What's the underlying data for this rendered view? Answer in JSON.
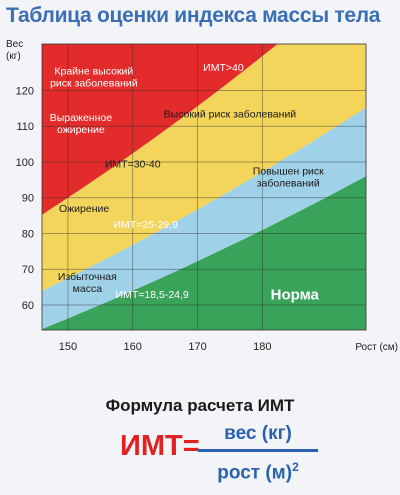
{
  "title": "Таблица оценки индекса массы тела",
  "chart_data": {
    "type": "area",
    "xlabel": "Рост (см)",
    "ylabel": "Вес\n(кг)",
    "xlim": [
      146,
      196
    ],
    "ylim": [
      53,
      133
    ],
    "xticks": [
      150,
      160,
      170,
      180
    ],
    "yticks": [
      60,
      70,
      80,
      90,
      100,
      110,
      120
    ],
    "zones": [
      {
        "name": "Норма",
        "bmi_min": 0,
        "bmi_max": 25,
        "color": "#3aa35a",
        "label": "ИМТ=18,5-24,9"
      },
      {
        "name": "Избыточная масса",
        "bmi_min": 25,
        "bmi_max": 30,
        "color": "#9fd1e8",
        "label": "ИМТ=25-29,9"
      },
      {
        "name": "Ожирение",
        "bmi_min": 30,
        "bmi_max": 40,
        "color": "#f3d55c",
        "label": "ИМТ=30-40"
      },
      {
        "name": "Крайне высокий риск",
        "bmi_min": 40,
        "bmi_max": 100,
        "color": "#e32b2b",
        "label": "ИМТ>40"
      }
    ],
    "annotations": [
      {
        "text": "Крайне высокий\nриск заболеваний",
        "x": 154,
        "y": 124.5,
        "color": "#ffffff"
      },
      {
        "text": "ИМТ>40",
        "x": 174,
        "y": 125.5,
        "color": "#ffffff"
      },
      {
        "text": "Выраженное\nожирение",
        "x": 152,
        "y": 111.5,
        "color": "#ffffff"
      },
      {
        "text": "Высокий риск заболеваний",
        "x": 175,
        "y": 112.5,
        "color": "#1a1a1a"
      },
      {
        "text": "ИМТ=30-40",
        "x": 160,
        "y": 98.5,
        "color": "#1a1a1a"
      },
      {
        "text": "Повышен риск\nзаболеваний",
        "x": 184,
        "y": 96.5,
        "color": "#1a1a1a"
      },
      {
        "text": "Ожирение",
        "x": 152.5,
        "y": 86,
        "color": "#1a1a1a"
      },
      {
        "text": "ИМТ=25-29,9",
        "x": 162,
        "y": 81.5,
        "color": "#ffffff"
      },
      {
        "text": "Избыточная\nмасса",
        "x": 153,
        "y": 67,
        "color": "#1a1a1a"
      },
      {
        "text": "ИМТ=18,5-24,9",
        "x": 163,
        "y": 62,
        "color": "#ffffff"
      },
      {
        "text": "Норма",
        "x": 185,
        "y": 61.5,
        "color": "#ffffff"
      }
    ]
  },
  "formula": {
    "title": "Формула расчета ИМТ",
    "lhs": "ИМТ=",
    "numerator": "вес (кг)",
    "denominator": "рост (м)",
    "exponent": "2"
  }
}
